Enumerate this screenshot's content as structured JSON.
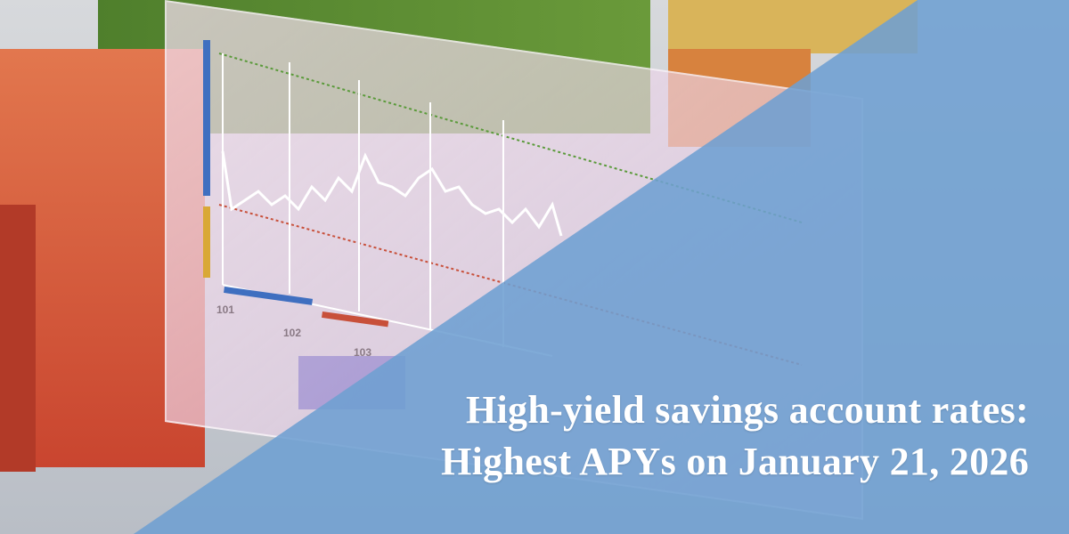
{
  "headline": {
    "line1": "High-yield savings account rates:",
    "line2": "Highest APYs on January 21, 2026"
  },
  "colors": {
    "overlay": "#6e9fd2",
    "text": "#ffffff"
  }
}
